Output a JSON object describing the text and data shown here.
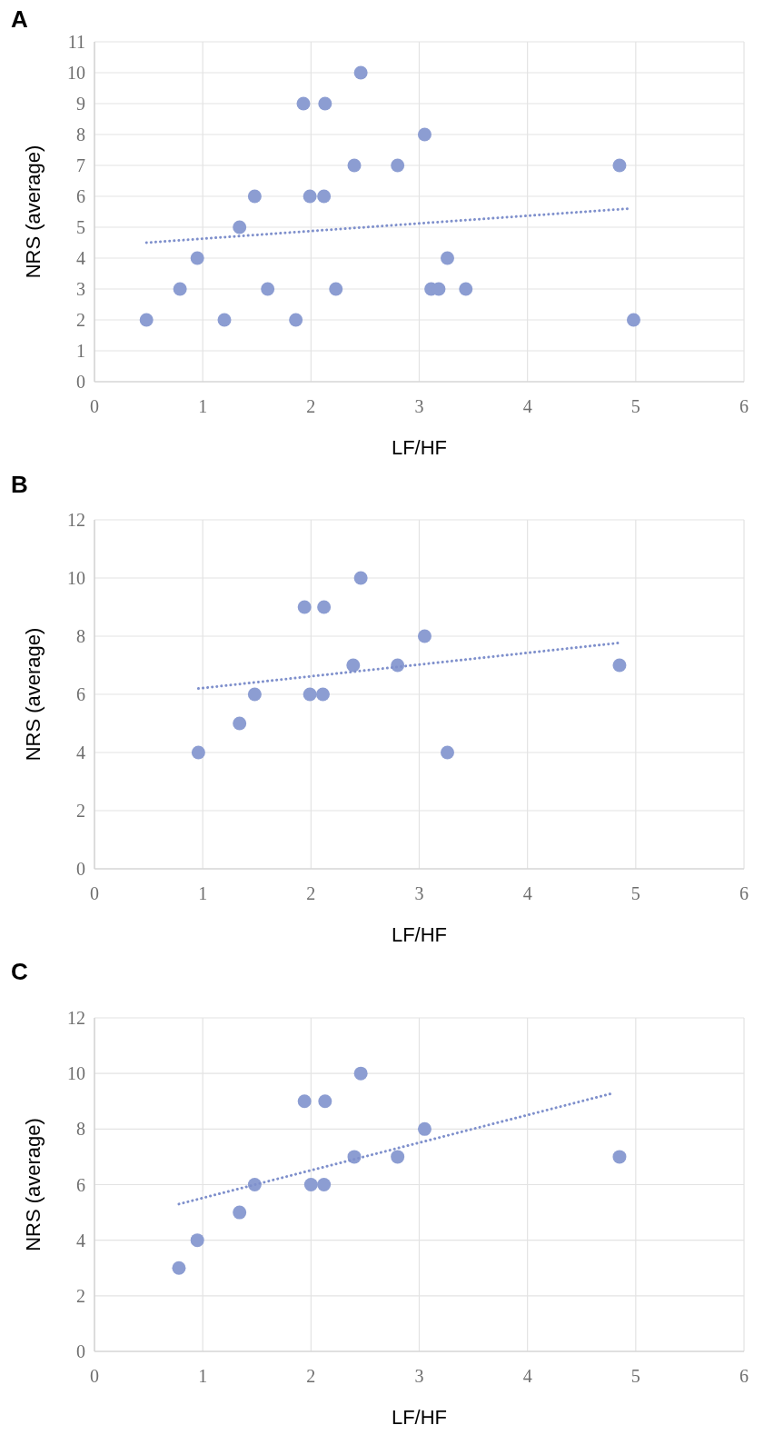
{
  "chart_data": [
    {
      "type": "scatter",
      "title": "A",
      "xlabel": "LF/HF",
      "ylabel": "NRS (average)",
      "xlim": [
        0,
        6
      ],
      "xticks": [
        0,
        1,
        2,
        3,
        4,
        5,
        6
      ],
      "ylim": [
        0,
        11
      ],
      "yticks": [
        0,
        1,
        2,
        3,
        4,
        5,
        6,
        7,
        8,
        9,
        10,
        11
      ],
      "grid": true,
      "series": [
        {
          "marker": "circle",
          "color": "#8c9dd2",
          "x": [
            0.48,
            0.79,
            0.95,
            1.2,
            1.34,
            1.48,
            1.6,
            1.86,
            1.93,
            1.99,
            2.12,
            2.13,
            2.23,
            2.4,
            2.46,
            2.8,
            3.05,
            3.11,
            3.18,
            3.26,
            3.43,
            4.85,
            4.98
          ],
          "values": [
            2,
            3,
            4,
            2,
            5,
            6,
            3,
            2,
            9,
            6,
            6,
            9,
            3,
            7,
            10,
            7,
            8,
            3,
            3,
            4,
            3,
            7,
            2
          ]
        },
        {
          "type": "line",
          "marker": "none",
          "color": "#7f90cc",
          "line_style": "dotted",
          "x": [
            0.48,
            4.93
          ],
          "values": [
            4.5,
            5.6
          ]
        }
      ]
    },
    {
      "type": "scatter",
      "title": "B",
      "xlabel": "LF/HF",
      "ylabel": "NRS (average)",
      "xlim": [
        0,
        6
      ],
      "xticks": [
        0,
        1,
        2,
        3,
        4,
        5,
        6
      ],
      "ylim": [
        0,
        12
      ],
      "yticks": [
        0,
        2,
        4,
        6,
        8,
        10,
        12
      ],
      "grid": true,
      "series": [
        {
          "marker": "circle",
          "color": "#8c9dd2",
          "x": [
            0.96,
            1.34,
            1.48,
            1.94,
            1.99,
            2.11,
            2.12,
            2.39,
            2.46,
            2.8,
            3.05,
            3.26,
            4.85
          ],
          "values": [
            4,
            5,
            6,
            9,
            6,
            6,
            9,
            7,
            10,
            7,
            8,
            4,
            7
          ]
        },
        {
          "type": "line",
          "marker": "none",
          "color": "#7f90cc",
          "line_style": "dotted",
          "x": [
            0.96,
            4.85
          ],
          "values": [
            6.2,
            7.77
          ]
        }
      ]
    },
    {
      "type": "scatter",
      "title": "C",
      "xlabel": "LF/HF",
      "ylabel": "NRS (average)",
      "xlim": [
        0,
        6
      ],
      "xticks": [
        0,
        1,
        2,
        3,
        4,
        5,
        6
      ],
      "ylim": [
        0,
        12
      ],
      "yticks": [
        0,
        2,
        4,
        6,
        8,
        10,
        12
      ],
      "grid": true,
      "series": [
        {
          "marker": "circle",
          "color": "#8c9dd2",
          "x": [
            0.78,
            0.95,
            1.34,
            1.48,
            1.94,
            2.0,
            2.12,
            2.13,
            2.4,
            2.46,
            2.8,
            3.05,
            4.85
          ],
          "values": [
            3,
            4,
            5,
            6,
            9,
            6,
            6,
            9,
            7,
            10,
            7,
            8,
            7
          ]
        },
        {
          "type": "line",
          "marker": "none",
          "color": "#7f90cc",
          "line_style": "dotted",
          "x": [
            0.78,
            4.8
          ],
          "values": [
            5.3,
            9.3
          ]
        }
      ]
    }
  ]
}
